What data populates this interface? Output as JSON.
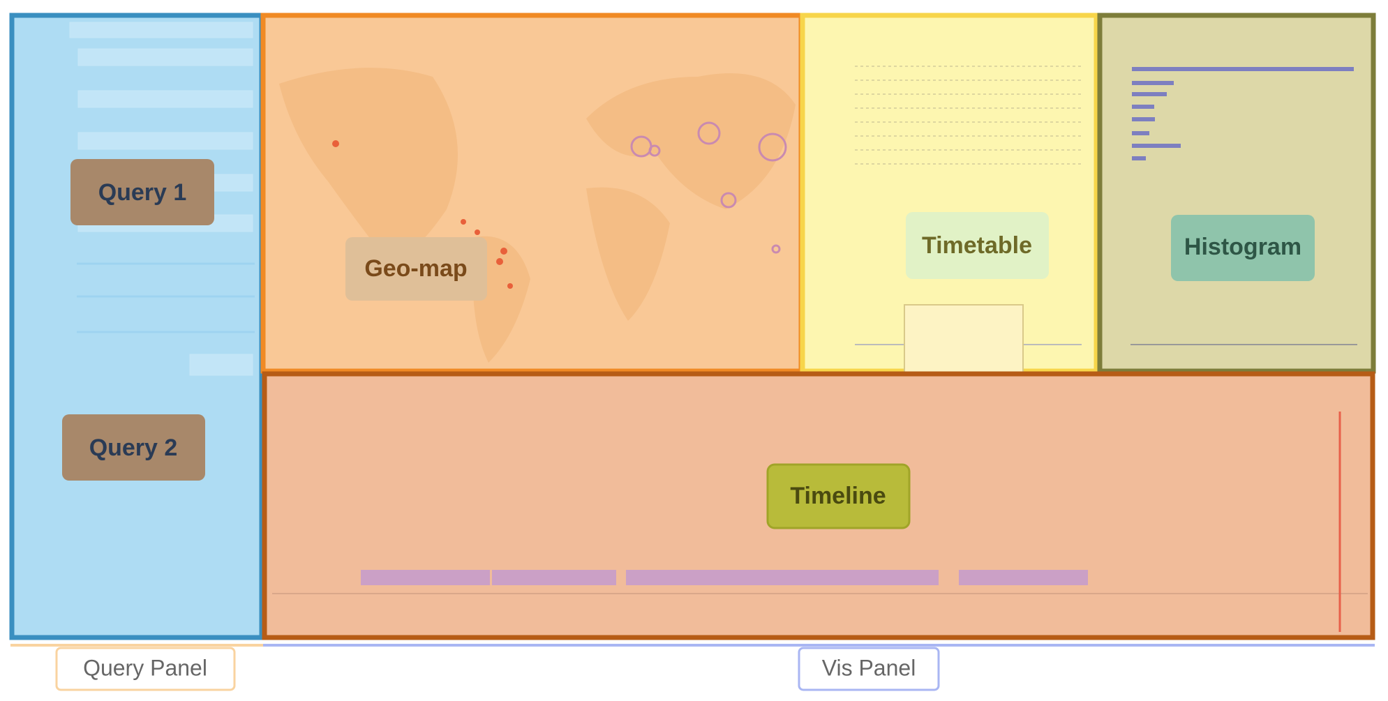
{
  "views": [
    {
      "label": "Query 1"
    },
    {
      "label": "Query 2"
    },
    {
      "label": "Geo-map"
    },
    {
      "label": "Timetable"
    },
    {
      "label": "Histogram"
    },
    {
      "label": "Timeline"
    }
  ],
  "panels": [
    {
      "label": "Query Panel"
    },
    {
      "label": "Vis Panel"
    }
  ]
}
